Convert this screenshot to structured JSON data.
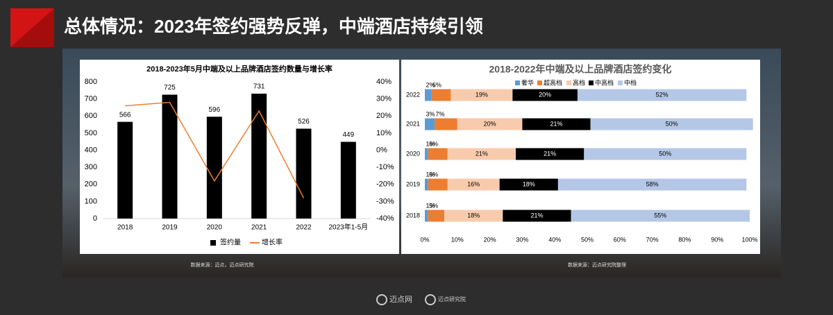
{
  "title": "总体情况：2023年签约强势反弹，中端酒店持续引领",
  "chart_data": [
    {
      "type": "bar",
      "title": "2018-2023年5月中端及以上品牌酒店签约数量与增长率",
      "categories": [
        "2018",
        "2019",
        "2020",
        "2021",
        "2022",
        "2023年1-5月"
      ],
      "series": [
        {
          "name": "签约量",
          "color": "#000000",
          "values": [
            566,
            725,
            596,
            731,
            526,
            449
          ]
        },
        {
          "name": "增长率",
          "color": "#ed7d31",
          "type": "line",
          "axis": "y2",
          "values": [
            26,
            28,
            -18,
            23,
            -28,
            null
          ]
        }
      ],
      "ylim": [
        0,
        800
      ],
      "yticks": [
        0,
        100,
        200,
        300,
        400,
        500,
        600,
        700,
        800
      ],
      "y2lim": [
        -40,
        40
      ],
      "y2ticks": [
        {
          "value": -40,
          "label": "-40%"
        },
        {
          "value": -30,
          "label": "-30%"
        },
        {
          "value": -20,
          "label": "-20%"
        },
        {
          "value": -10,
          "label": "-10%"
        },
        {
          "value": 0,
          "label": "0%"
        },
        {
          "value": 10,
          "label": "10%"
        },
        {
          "value": 20,
          "label": "20%"
        },
        {
          "value": 30,
          "label": "30%"
        },
        {
          "value": 40,
          "label": "40%"
        }
      ],
      "legend": "bottom",
      "source": "数据来源：迈点，迈点研究院"
    },
    {
      "type": "stacked-barh",
      "title": "2018-2022年中端及以上品牌酒店签约变化",
      "categories": [
        "2022",
        "2021",
        "2020",
        "2019",
        "2018"
      ],
      "series": [
        {
          "name": "奢华",
          "color": "#5b9bd5",
          "values": [
            2,
            3,
            1,
            1,
            1
          ],
          "value_labels": [
            "2%",
            "3%",
            "1%",
            "1%",
            "1%"
          ]
        },
        {
          "name": "超高档",
          "color": "#ed7d31",
          "values": [
            6,
            7,
            6,
            6,
            5
          ],
          "value_labels": [
            "6%",
            "7%",
            "6%",
            "6%",
            "5%"
          ]
        },
        {
          "name": "高档",
          "color": "#f8cbad",
          "values": [
            19,
            20,
            21,
            16,
            18
          ],
          "value_labels": [
            "19%",
            "20%",
            "21%",
            "16%",
            "18%"
          ]
        },
        {
          "name": "中高档",
          "color": "#000000",
          "values": [
            20,
            21,
            21,
            18,
            21
          ],
          "value_labels": [
            "20%",
            "21%",
            "21%",
            "18%",
            "21%"
          ]
        },
        {
          "name": "中档",
          "color": "#b4c7e7",
          "values": [
            52,
            50,
            50,
            58,
            55
          ],
          "value_labels": [
            "52%",
            "50%",
            "50%",
            "58%",
            "55%"
          ]
        }
      ],
      "xlim": [
        0,
        100
      ],
      "xticks": [
        {
          "value": 0,
          "label": "0%"
        },
        {
          "value": 10,
          "label": "10%"
        },
        {
          "value": 20,
          "label": "20%"
        },
        {
          "value": 30,
          "label": "30%"
        },
        {
          "value": 40,
          "label": "40%"
        },
        {
          "value": 50,
          "label": "50%"
        },
        {
          "value": 60,
          "label": "60%"
        },
        {
          "value": 70,
          "label": "70%"
        },
        {
          "value": 80,
          "label": "80%"
        },
        {
          "value": 90,
          "label": "90%"
        },
        {
          "value": 100,
          "label": "100%"
        }
      ],
      "legend": "top",
      "source": "数据来源：迈点研究院整理"
    }
  ],
  "footer": {
    "logo1": "迈点网",
    "logo2": "迈点研究院"
  }
}
